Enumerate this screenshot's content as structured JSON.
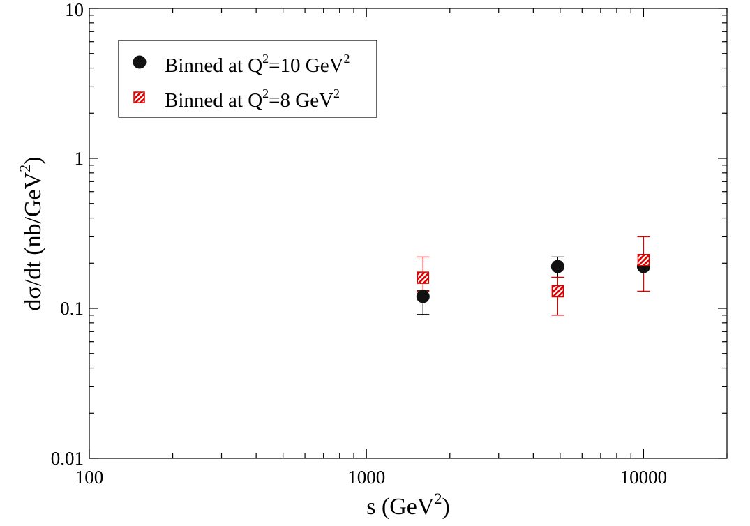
{
  "chart_data": {
    "type": "scatter",
    "title": "",
    "xlabel": {
      "main": "s (GeV",
      "sup": "2",
      "tail": ")"
    },
    "ylabel": {
      "main": "dσ/dt (nb/GeV",
      "sup": "2",
      "tail": ")"
    },
    "xscale": "log",
    "yscale": "log",
    "xlim": [
      100,
      20000
    ],
    "ylim": [
      0.01,
      10
    ],
    "x_ticks": [
      100,
      1000,
      10000
    ],
    "x_tick_labels": [
      "100",
      "1000",
      "10000"
    ],
    "y_ticks": [
      0.01,
      0.1,
      1,
      10
    ],
    "y_tick_labels": [
      "0.01",
      "0.1",
      "1",
      "10"
    ],
    "grid": false,
    "legend": {
      "position": "top-left",
      "entries": [
        {
          "label_main": "Binned at Q",
          "label_sup1": "2",
          "label_mid": "=10 GeV",
          "label_sup2": "2"
        },
        {
          "label_main": "Binned at Q",
          "label_sup1": "2",
          "label_mid": "=8 GeV",
          "label_sup2": "2"
        }
      ]
    },
    "series": [
      {
        "name": "Binned at Q^2=10 GeV^2",
        "marker": "circle",
        "color": "#000000",
        "points": [
          {
            "x": 1600,
            "y": 0.12,
            "ylow": 0.091,
            "yhigh": 0.131
          },
          {
            "x": 4900,
            "y": 0.19,
            "ylow": 0.161,
            "yhigh": 0.22
          },
          {
            "x": 10000,
            "y": 0.19,
            "ylow": 0.13,
            "yhigh": 0.22
          }
        ]
      },
      {
        "name": "Binned at Q^2=8 GeV^2",
        "marker": "hatched-square",
        "color": "#e00000",
        "points": [
          {
            "x": 1600,
            "y": 0.16,
            "ylow": 0.13,
            "yhigh": 0.22
          },
          {
            "x": 4900,
            "y": 0.13,
            "ylow": 0.09,
            "yhigh": 0.161
          },
          {
            "x": 10000,
            "y": 0.21,
            "ylow": 0.13,
            "yhigh": 0.3
          }
        ]
      }
    ]
  }
}
